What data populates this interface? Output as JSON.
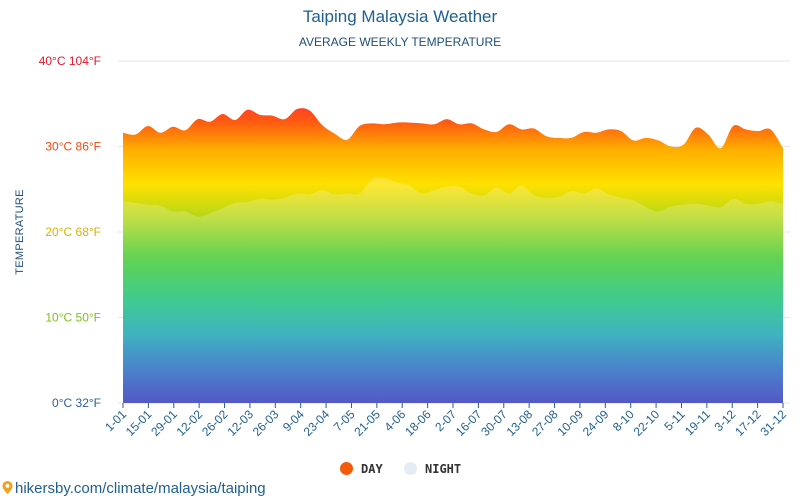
{
  "header": {
    "title": "Taiping Malaysia Weather",
    "subtitle": "AVERAGE WEEKLY TEMPERATURE"
  },
  "legend": {
    "day_label": "DAY",
    "night_label": "NIGHT",
    "day_color": "#f25c0a",
    "night_color": "#e6ecf3"
  },
  "footer": {
    "source": "hikersby.com/climate/malaysia/taiping"
  },
  "chart_data": {
    "type": "area",
    "title": "Taiping Malaysia Weather",
    "subtitle": "AVERAGE WEEKLY TEMPERATURE",
    "ylabel": "TEMPERATURE",
    "ylim_c": [
      0,
      40
    ],
    "y_ticks": [
      {
        "c": 0,
        "label": "0°C 32°F",
        "color": "#2a5fa0"
      },
      {
        "c": 10,
        "label": "10°C 50°F",
        "color": "#7cc21e"
      },
      {
        "c": 20,
        "label": "20°C 68°F",
        "color": "#d8b400"
      },
      {
        "c": 30,
        "label": "30°C 86°F",
        "color": "#ef4a10"
      },
      {
        "c": 40,
        "label": "40°C 104°F",
        "color": "#e8152a"
      }
    ],
    "x_ticks": [
      "1-01",
      "15-01",
      "29-01",
      "12-02",
      "26-02",
      "12-03",
      "26-03",
      "9-04",
      "23-04",
      "7-05",
      "21-05",
      "4-06",
      "18-06",
      "2-07",
      "16-07",
      "30-07",
      "13-08",
      "27-08",
      "10-09",
      "24-09",
      "8-10",
      "22-10",
      "5-11",
      "19-11",
      "3-12",
      "17-12",
      "31-12"
    ],
    "grid": true,
    "legend_position": "bottom-center",
    "series": [
      {
        "name": "DAY",
        "values": [
          31.6,
          31.4,
          32.4,
          31.6,
          32.3,
          31.9,
          33.2,
          32.9,
          33.8,
          33.1,
          34.3,
          33.7,
          33.6,
          33.2,
          34.4,
          34.2,
          32.5,
          31.5,
          30.8,
          32.4,
          32.7,
          32.6,
          32.8,
          32.8,
          32.7,
          32.6,
          33.2,
          32.6,
          32.7,
          32.0,
          31.7,
          32.6,
          32.0,
          32.1,
          31.2,
          31.0,
          31.0,
          31.7,
          31.6,
          32.0,
          31.8,
          30.7,
          31.0,
          30.7,
          30.0,
          30.2,
          32.2,
          31.4,
          29.8,
          32.4,
          32.0,
          31.8,
          32.0,
          29.8
        ]
      },
      {
        "name": "NIGHT",
        "values": [
          23.6,
          23.4,
          23.2,
          23.1,
          22.4,
          22.4,
          21.8,
          22.2,
          22.8,
          23.4,
          23.5,
          23.9,
          23.8,
          24.0,
          24.5,
          24.4,
          24.9,
          24.4,
          24.5,
          24.5,
          26.2,
          26.3,
          25.8,
          25.4,
          24.5,
          24.9,
          25.3,
          25.3,
          24.5,
          24.3,
          25.2,
          24.5,
          25.4,
          24.3,
          24.0,
          24.1,
          24.8,
          24.5,
          25.1,
          24.4,
          24.0,
          23.7,
          22.9,
          22.4,
          23.0,
          23.2,
          23.3,
          23.1,
          22.9,
          23.9,
          23.3,
          23.3,
          23.6,
          23.3
        ]
      }
    ]
  }
}
